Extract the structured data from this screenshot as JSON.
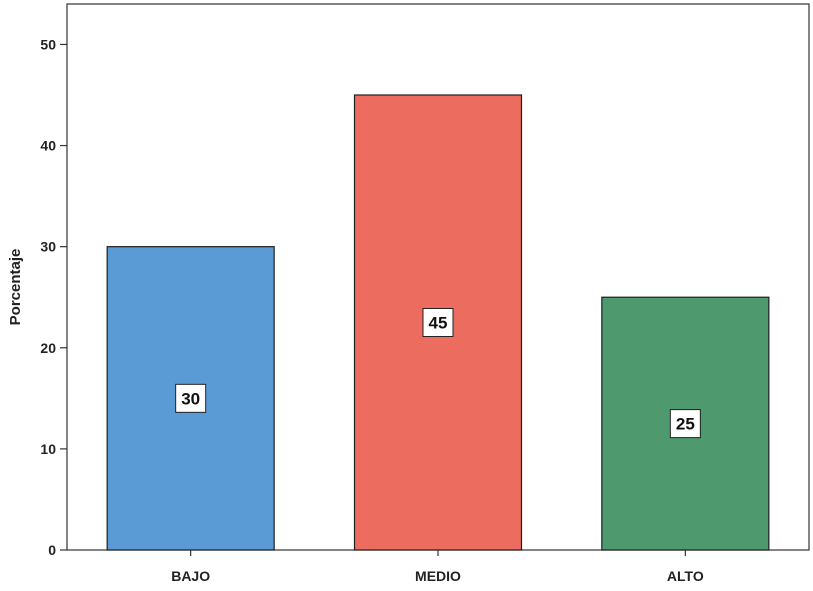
{
  "chart_data": {
    "type": "bar",
    "title": "",
    "xlabel": "",
    "ylabel": "Porcentaje",
    "categories": [
      "BAJO",
      "MEDIO",
      "ALTO"
    ],
    "values": [
      30,
      45,
      25
    ],
    "data_labels": [
      "30",
      "45",
      "25"
    ],
    "ylim": [
      0,
      54
    ],
    "yticks": [
      0,
      10,
      20,
      30,
      40,
      50
    ],
    "grid": false,
    "legend": "none",
    "colors": {
      "bars": [
        "#5b9bd5",
        "#ec6c5f",
        "#4e9a6e"
      ],
      "bar_edge": "#1f1f1f",
      "frame": "#333333",
      "label_box": "#ffffff"
    }
  }
}
